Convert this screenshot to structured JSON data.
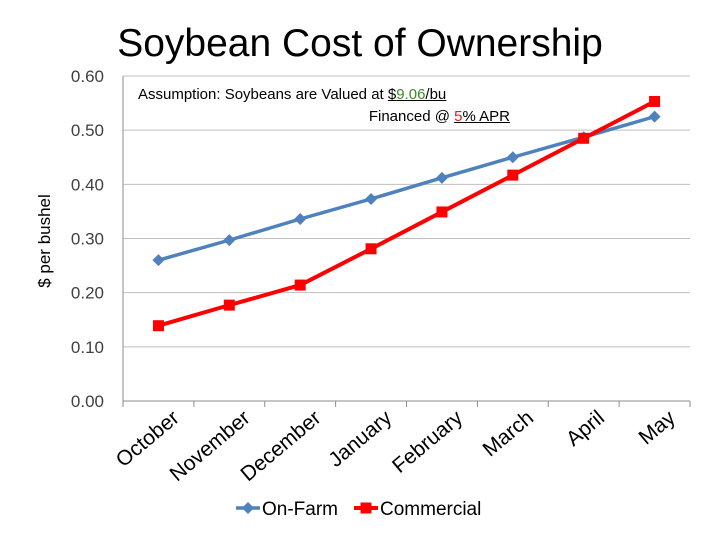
{
  "chart_data": {
    "type": "line",
    "title": "Soybean Cost of Ownership",
    "assumption": {
      "line1_prefix": "Assumption: Soybeans are Valued at ",
      "price_dollar": "$",
      "price_value": "9.06",
      "price_unit": "/bu",
      "line2_prefix": "Financed @ ",
      "rate_value": "5",
      "rate_suffix": "% APR"
    },
    "xlabel": "",
    "ylabel": "$ per bushel",
    "ylim": [
      0,
      0.6
    ],
    "yticks": [
      "0.00",
      "0.10",
      "0.20",
      "0.30",
      "0.40",
      "0.50",
      "0.60"
    ],
    "categories": [
      "October",
      "November",
      "December",
      "January",
      "February",
      "March",
      "April",
      "May"
    ],
    "series": [
      {
        "name": "On-Farm",
        "color": "#4f81bd",
        "marker": "diamond",
        "values": [
          0.26,
          0.297,
          0.336,
          0.373,
          0.412,
          0.45,
          0.487,
          0.525
        ]
      },
      {
        "name": "Commercial",
        "color": "#ff0000",
        "marker": "square",
        "values": [
          0.139,
          0.177,
          0.214,
          0.281,
          0.349,
          0.417,
          0.485,
          0.553
        ]
      }
    ],
    "grid": true,
    "legend": "bottom"
  }
}
